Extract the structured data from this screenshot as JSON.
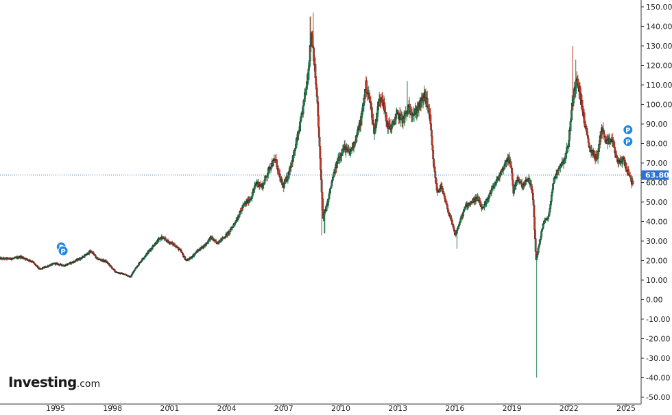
{
  "chart_data": {
    "type": "candlestick",
    "price_axis": {
      "ticks": [
        "150.00",
        "140.00",
        "130.00",
        "120.00",
        "110.00",
        "100.00",
        "90.00",
        "80.00",
        "70.00",
        "60.00",
        "50.00",
        "40.00",
        "30.00",
        "20.00",
        "10.00",
        "0.00",
        "-10.00",
        "-20.00",
        "-30.00",
        "-40.00",
        "-50.00"
      ],
      "range": [
        -50,
        150
      ]
    },
    "time_axis": {
      "ticks": [
        "1995",
        "1998",
        "2001",
        "2004",
        "2007",
        "2010",
        "2013",
        "2016",
        "2019",
        "2022",
        "2025"
      ]
    },
    "last_price": {
      "value": 63.8,
      "label": "63.80"
    },
    "grid": false,
    "markers": [
      {
        "label": "P",
        "x": 1995.3,
        "y": 27
      },
      {
        "label": "P",
        "x": 1995.4,
        "y": 25
      },
      {
        "label": "P",
        "x": 2025.1,
        "y": 87
      },
      {
        "label": "P",
        "x": 2025.1,
        "y": 81
      }
    ],
    "anchors": [
      [
        1992.8,
        21
      ],
      [
        1993.2,
        22
      ],
      [
        1993.8,
        19.5
      ],
      [
        1994.2,
        15.5
      ],
      [
        1994.7,
        17.5
      ],
      [
        1995.0,
        18.5
      ],
      [
        1995.5,
        17.5
      ],
      [
        1996.0,
        19.5
      ],
      [
        1996.5,
        22
      ],
      [
        1996.9,
        25
      ],
      [
        1997.2,
        21
      ],
      [
        1997.7,
        19.5
      ],
      [
        1998.2,
        14
      ],
      [
        1998.7,
        13
      ],
      [
        1998.95,
        11.5
      ],
      [
        1999.3,
        17
      ],
      [
        1999.7,
        22
      ],
      [
        2000.2,
        28
      ],
      [
        2000.6,
        32
      ],
      [
        2000.9,
        30
      ],
      [
        2001.3,
        28
      ],
      [
        2001.6,
        25
      ],
      [
        2001.9,
        20
      ],
      [
        2002.1,
        21
      ],
      [
        2002.5,
        25
      ],
      [
        2002.9,
        28
      ],
      [
        2003.2,
        32
      ],
      [
        2003.5,
        29
      ],
      [
        2003.9,
        32
      ],
      [
        2004.2,
        35
      ],
      [
        2004.6,
        42
      ],
      [
        2004.9,
        48
      ],
      [
        2005.3,
        52
      ],
      [
        2005.6,
        60
      ],
      [
        2005.9,
        58
      ],
      [
        2006.3,
        68
      ],
      [
        2006.6,
        72
      ],
      [
        2006.8,
        63
      ],
      [
        2007.0,
        58
      ],
      [
        2007.2,
        62
      ],
      [
        2007.5,
        72
      ],
      [
        2007.8,
        85
      ],
      [
        2008.0,
        95
      ],
      [
        2008.3,
        115
      ],
      [
        2008.5,
        138
      ],
      [
        2008.65,
        120
      ],
      [
        2008.8,
        100
      ],
      [
        2008.95,
        70
      ],
      [
        2009.1,
        42
      ],
      [
        2009.3,
        48
      ],
      [
        2009.6,
        62
      ],
      [
        2009.9,
        72
      ],
      [
        2010.2,
        78
      ],
      [
        2010.5,
        75
      ],
      [
        2010.8,
        82
      ],
      [
        2011.1,
        92
      ],
      [
        2011.35,
        110
      ],
      [
        2011.6,
        100
      ],
      [
        2011.8,
        85
      ],
      [
        2012.0,
        100
      ],
      [
        2012.2,
        105
      ],
      [
        2012.45,
        90
      ],
      [
        2012.7,
        88
      ],
      [
        2013.0,
        95
      ],
      [
        2013.3,
        92
      ],
      [
        2013.6,
        98
      ],
      [
        2013.9,
        95
      ],
      [
        2014.2,
        100
      ],
      [
        2014.45,
        105
      ],
      [
        2014.7,
        95
      ],
      [
        2014.9,
        70
      ],
      [
        2015.1,
        55
      ],
      [
        2015.3,
        58
      ],
      [
        2015.6,
        48
      ],
      [
        2015.85,
        40
      ],
      [
        2016.05,
        33
      ],
      [
        2016.3,
        40
      ],
      [
        2016.6,
        48
      ],
      [
        2016.9,
        50
      ],
      [
        2017.2,
        52
      ],
      [
        2017.5,
        46
      ],
      [
        2017.9,
        55
      ],
      [
        2018.3,
        62
      ],
      [
        2018.6,
        68
      ],
      [
        2018.8,
        73
      ],
      [
        2019.0,
        68
      ],
      [
        2019.1,
        55
      ],
      [
        2019.3,
        62
      ],
      [
        2019.6,
        58
      ],
      [
        2019.9,
        62
      ],
      [
        2020.05,
        58
      ],
      [
        2020.15,
        50
      ],
      [
        2020.3,
        20
      ],
      [
        2020.45,
        28
      ],
      [
        2020.7,
        40
      ],
      [
        2020.95,
        42
      ],
      [
        2021.2,
        60
      ],
      [
        2021.5,
        68
      ],
      [
        2021.8,
        72
      ],
      [
        2022.0,
        80
      ],
      [
        2022.2,
        100
      ],
      [
        2022.45,
        115
      ],
      [
        2022.7,
        100
      ],
      [
        2022.9,
        88
      ],
      [
        2023.1,
        78
      ],
      [
        2023.3,
        75
      ],
      [
        2023.5,
        72
      ],
      [
        2023.75,
        88
      ],
      [
        2024.0,
        80
      ],
      [
        2024.3,
        82
      ],
      [
        2024.6,
        70
      ],
      [
        2024.9,
        72
      ],
      [
        2025.1,
        66
      ],
      [
        2025.25,
        62
      ],
      [
        2025.35,
        60
      ]
    ],
    "spikes": [
      {
        "x": 2008.55,
        "high": 147
      },
      {
        "x": 2008.4,
        "high": 145
      },
      {
        "x": 2009.0,
        "low": 33
      },
      {
        "x": 2009.15,
        "low": 34
      },
      {
        "x": 2020.3,
        "low": -40
      },
      {
        "x": 2022.2,
        "high": 130
      },
      {
        "x": 2022.35,
        "high": 123
      },
      {
        "x": 2016.1,
        "low": 26
      },
      {
        "x": 2013.5,
        "high": 112
      },
      {
        "x": 2011.35,
        "high": 114
      }
    ]
  }
}
